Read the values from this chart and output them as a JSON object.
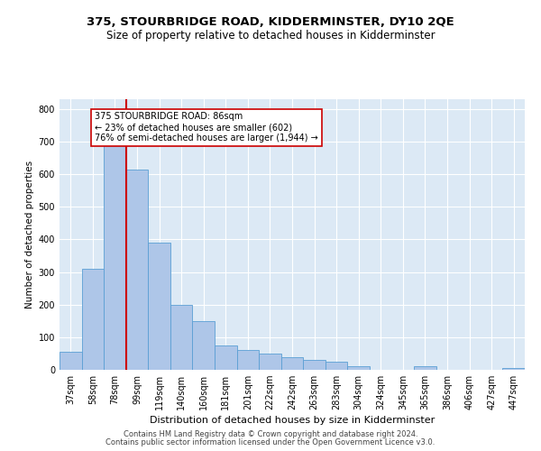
{
  "title": "375, STOURBRIDGE ROAD, KIDDERMINSTER, DY10 2QE",
  "subtitle": "Size of property relative to detached houses in Kidderminster",
  "xlabel": "Distribution of detached houses by size in Kidderminster",
  "ylabel": "Number of detached properties",
  "categories": [
    "37sqm",
    "58sqm",
    "78sqm",
    "99sqm",
    "119sqm",
    "140sqm",
    "160sqm",
    "181sqm",
    "201sqm",
    "222sqm",
    "242sqm",
    "263sqm",
    "283sqm",
    "304sqm",
    "324sqm",
    "345sqm",
    "365sqm",
    "386sqm",
    "406sqm",
    "427sqm",
    "447sqm"
  ],
  "values": [
    55,
    310,
    760,
    615,
    390,
    200,
    150,
    75,
    60,
    50,
    40,
    30,
    25,
    10,
    0,
    0,
    10,
    0,
    0,
    0,
    5
  ],
  "bar_color": "#aec6e8",
  "bar_edge_color": "#5a9fd4",
  "vline_x_index": 2,
  "vline_color": "#cc0000",
  "annotation_text": "375 STOURBRIDGE ROAD: 86sqm\n← 23% of detached houses are smaller (602)\n76% of semi-detached houses are larger (1,944) →",
  "annotation_box_color": "#ffffff",
  "annotation_box_edge": "#cc0000",
  "ylim": [
    0,
    830
  ],
  "yticks": [
    0,
    100,
    200,
    300,
    400,
    500,
    600,
    700,
    800
  ],
  "footer1": "Contains HM Land Registry data © Crown copyright and database right 2024.",
  "footer2": "Contains public sector information licensed under the Open Government Licence v3.0.",
  "bg_color": "#dce9f5",
  "fig_bg_color": "#ffffff",
  "title_fontsize": 9.5,
  "subtitle_fontsize": 8.5,
  "xlabel_fontsize": 8,
  "ylabel_fontsize": 7.5,
  "tick_fontsize": 7,
  "footer_fontsize": 6,
  "annot_fontsize": 7
}
